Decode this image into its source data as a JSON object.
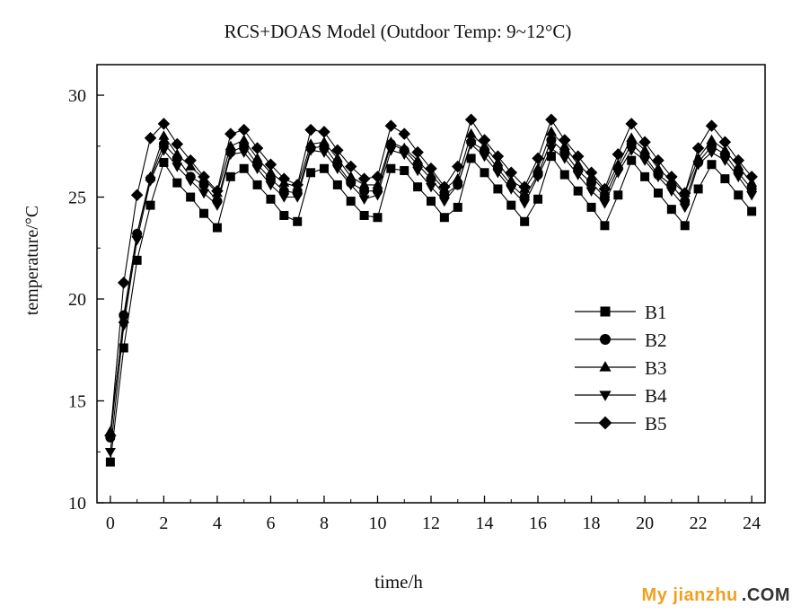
{
  "chart_data": {
    "type": "line",
    "title": "RCS+DOAS Model (Outdoor Temp: 9~12°C)",
    "xlabel": "time/h",
    "ylabel": "temperature/°C",
    "xlim": [
      -0.5,
      24.5
    ],
    "ylim": [
      10,
      31.5
    ],
    "xticks": [
      0,
      2,
      4,
      6,
      8,
      10,
      12,
      14,
      16,
      18,
      20,
      22,
      24
    ],
    "yticks": [
      10,
      15,
      20,
      25,
      30
    ],
    "grid": false,
    "legend_position": "center-right",
    "x": [
      0,
      0.5,
      1,
      1.5,
      2,
      2.5,
      3,
      3.5,
      4,
      4.5,
      5,
      5.5,
      6,
      6.5,
      7,
      7.5,
      8,
      8.5,
      9,
      9.5,
      10,
      10.5,
      11,
      11.5,
      12,
      12.5,
      13,
      13.5,
      14,
      14.5,
      15,
      15.5,
      16,
      16.5,
      17,
      17.5,
      18,
      18.5,
      19,
      19.5,
      20,
      20.5,
      21,
      21.5,
      22,
      22.5,
      23,
      23.5,
      24
    ],
    "series": [
      {
        "name": "B1",
        "marker": "square",
        "values": [
          12.0,
          17.6,
          21.9,
          24.6,
          26.7,
          25.7,
          25.0,
          24.2,
          23.5,
          26.0,
          26.4,
          25.6,
          24.9,
          24.1,
          23.8,
          26.2,
          26.4,
          25.6,
          24.8,
          24.1,
          24.0,
          26.4,
          26.3,
          25.5,
          24.8,
          24.0,
          24.5,
          26.9,
          26.2,
          25.4,
          24.6,
          23.8,
          24.9,
          27.0,
          26.1,
          25.3,
          24.5,
          23.6,
          25.1,
          26.8,
          26.0,
          25.2,
          24.4,
          23.6,
          25.4,
          26.6,
          25.9,
          25.1,
          24.3
        ]
      },
      {
        "name": "B2",
        "marker": "circle",
        "values": [
          13.2,
          19.2,
          23.2,
          25.9,
          27.6,
          26.9,
          26.0,
          25.6,
          24.8,
          27.2,
          27.5,
          26.6,
          25.9,
          25.3,
          25.2,
          27.4,
          27.5,
          26.6,
          25.7,
          25.3,
          25.3,
          27.6,
          27.3,
          26.6,
          25.9,
          25.1,
          25.6,
          27.7,
          27.3,
          26.4,
          25.6,
          25.0,
          26.1,
          27.8,
          27.2,
          26.3,
          25.7,
          25.0,
          26.4,
          27.6,
          27.0,
          26.1,
          25.6,
          24.8,
          26.7,
          27.5,
          27.1,
          26.2,
          25.4
        ]
      },
      {
        "name": "B3",
        "marker": "triangle-up",
        "values": [
          13.5,
          19.0,
          23.2,
          26.0,
          28.0,
          27.1,
          26.5,
          25.9,
          25.2,
          27.5,
          27.8,
          26.9,
          26.2,
          25.7,
          25.5,
          27.6,
          27.7,
          26.9,
          26.0,
          25.6,
          25.6,
          27.7,
          27.4,
          26.8,
          26.1,
          25.4,
          25.9,
          28.1,
          27.5,
          26.7,
          25.8,
          25.4,
          26.4,
          28.2,
          27.5,
          26.6,
          26.0,
          25.3,
          26.6,
          27.9,
          27.3,
          26.4,
          25.8,
          25.2,
          26.9,
          27.8,
          27.3,
          26.5,
          25.7
        ]
      },
      {
        "name": "B4",
        "marker": "triangle-down",
        "values": [
          12.5,
          18.7,
          22.9,
          25.8,
          27.3,
          26.5,
          25.8,
          25.2,
          24.6,
          27.1,
          27.2,
          26.4,
          25.6,
          25.0,
          25.0,
          27.3,
          27.2,
          26.4,
          25.6,
          24.9,
          25.1,
          27.3,
          27.1,
          26.3,
          25.5,
          24.8,
          25.6,
          27.6,
          27.0,
          26.2,
          25.4,
          24.7,
          26.0,
          27.4,
          26.9,
          26.1,
          25.3,
          24.7,
          26.2,
          27.3,
          26.8,
          26.0,
          25.3,
          24.5,
          26.6,
          27.2,
          26.8,
          26.0,
          25.1
        ]
      },
      {
        "name": "B5",
        "marker": "diamond",
        "values": [
          13.3,
          20.8,
          25.1,
          27.9,
          28.6,
          27.6,
          26.8,
          26.0,
          25.3,
          28.1,
          28.3,
          27.4,
          26.6,
          25.9,
          25.6,
          28.3,
          28.2,
          27.3,
          26.5,
          25.9,
          26.0,
          28.5,
          28.1,
          27.2,
          26.4,
          25.5,
          26.5,
          28.8,
          27.8,
          27.0,
          26.2,
          25.5,
          26.9,
          28.8,
          27.8,
          27.0,
          26.2,
          25.4,
          27.1,
          28.6,
          27.7,
          26.8,
          26.0,
          25.2,
          27.4,
          28.5,
          27.7,
          26.8,
          26.0
        ]
      }
    ]
  },
  "watermark": {
    "brand": "My jianzhu",
    "suffix": ".COM"
  }
}
